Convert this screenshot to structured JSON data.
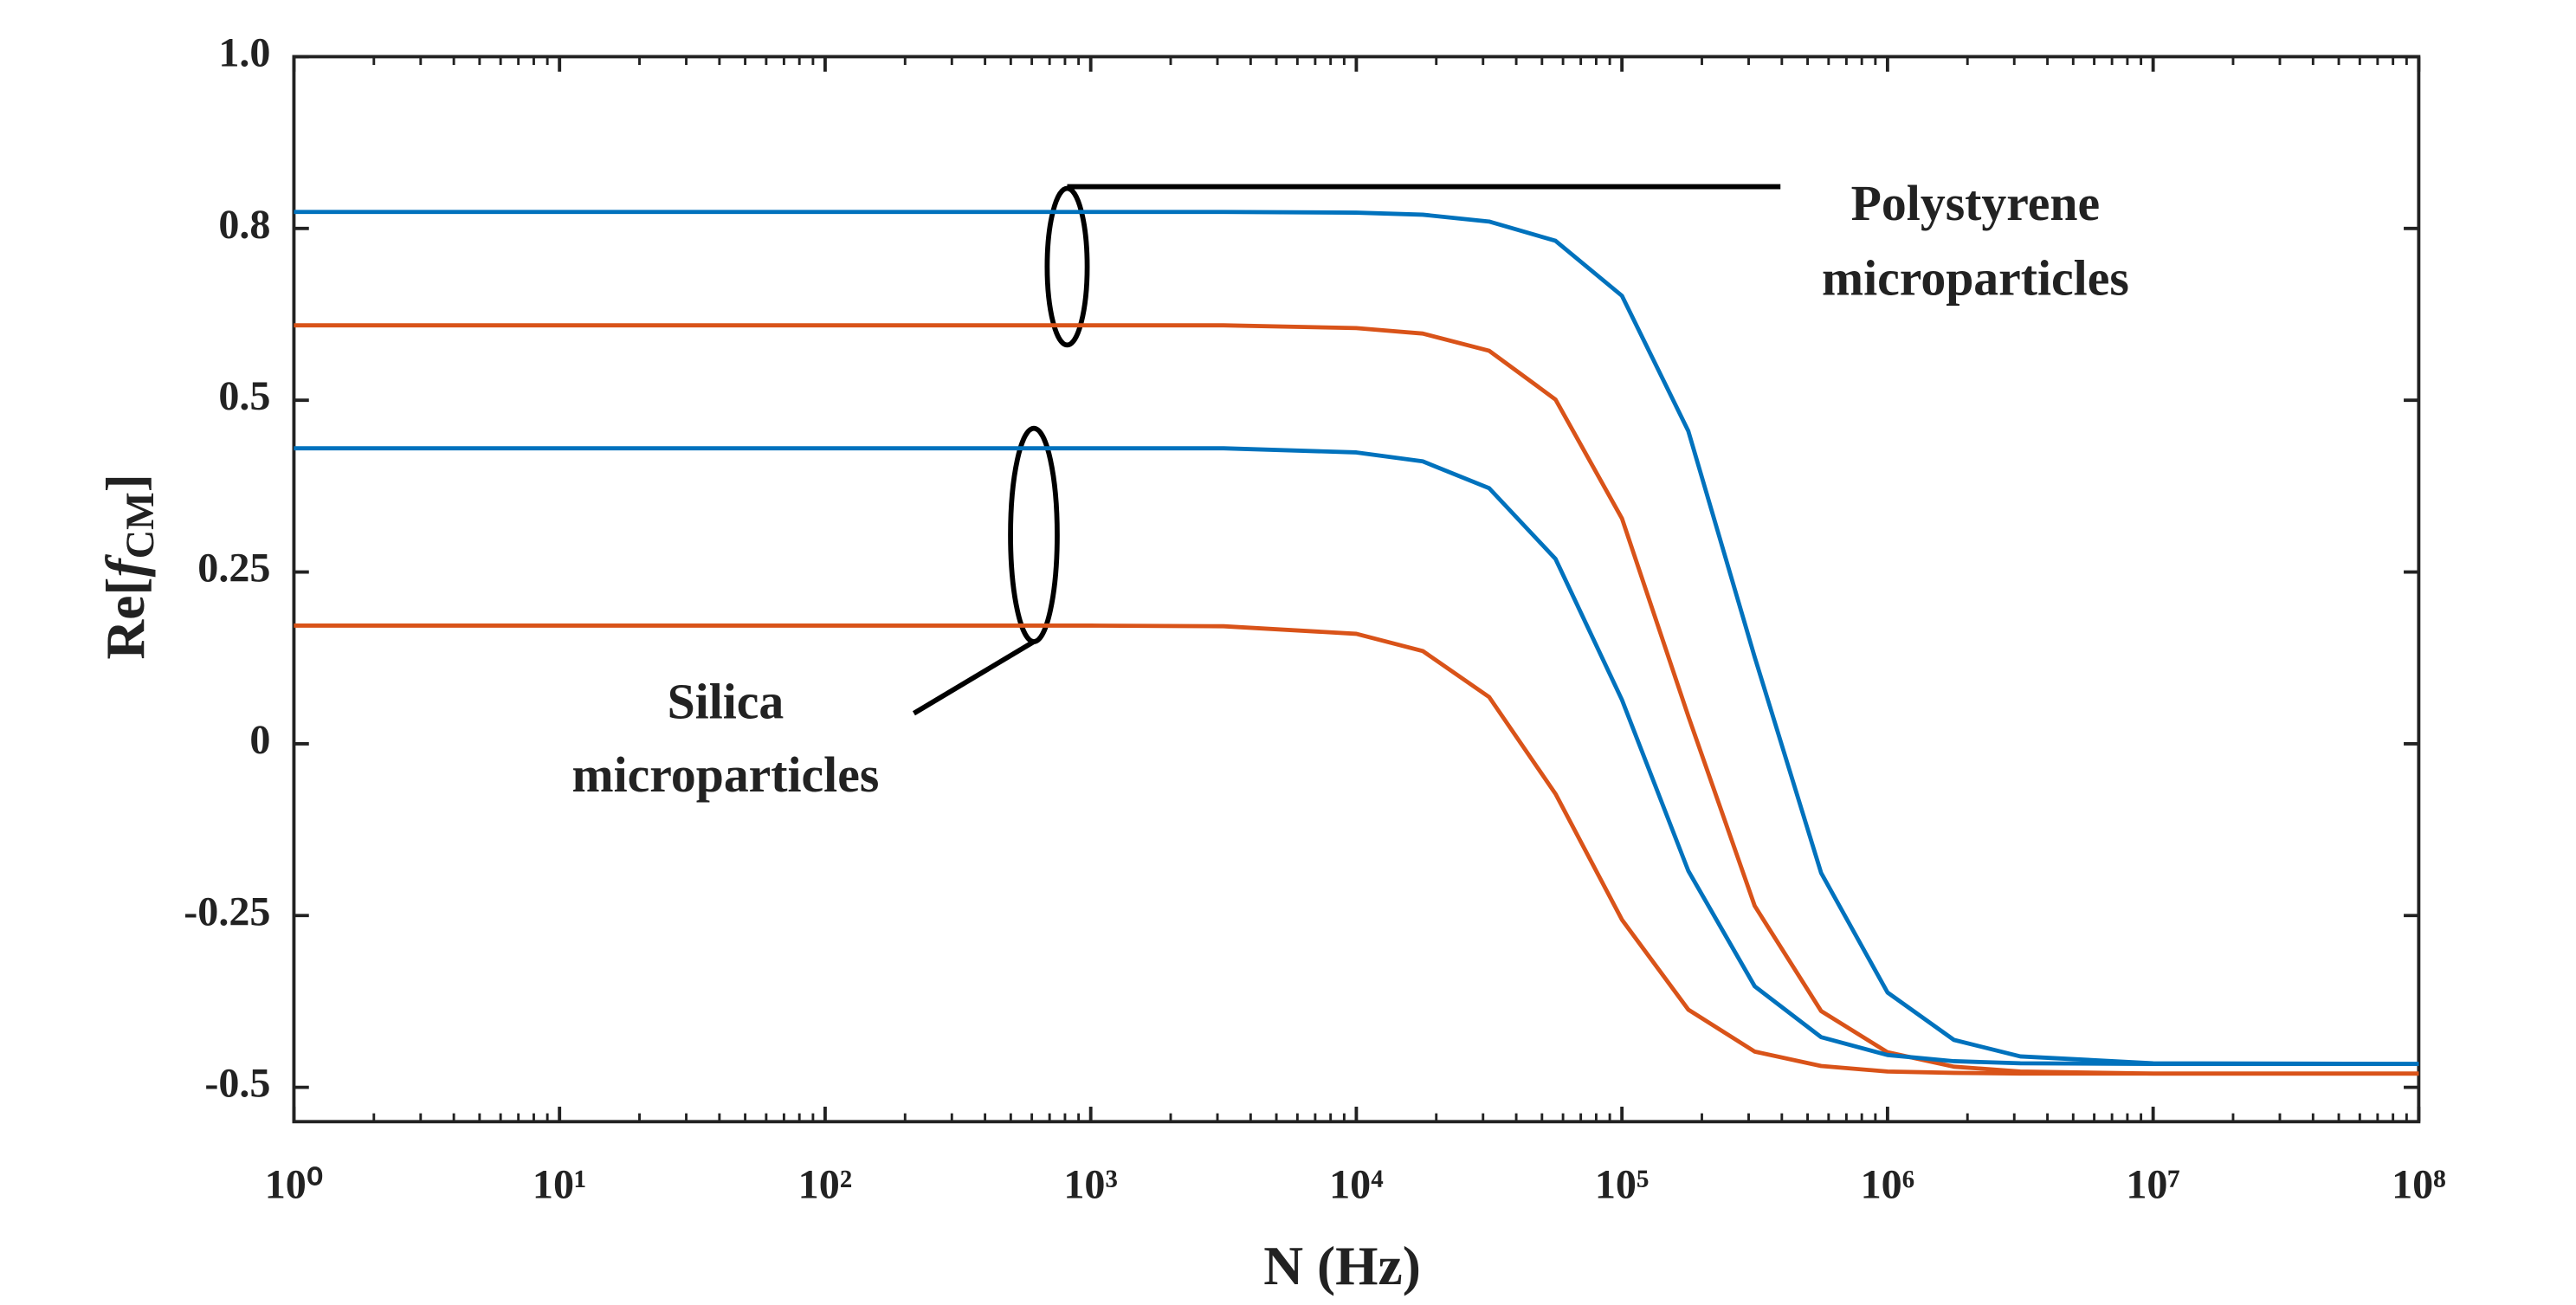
{
  "chart_data": {
    "type": "line",
    "x_label": "N (Hz)",
    "y_label": [
      "Re[",
      "f",
      "CM",
      "]"
    ],
    "annotations": [
      "Polystyrene",
      "microparticles",
      "Silica",
      "microparticles"
    ],
    "x": [
      1,
      10,
      100,
      1000,
      3162,
      10000,
      17783,
      31623,
      56234,
      100000,
      177828,
      316228,
      562341,
      1000000,
      1778279,
      3162278,
      10000000,
      100000000
    ],
    "series": [
      {
        "color": "#0072bd",
        "values": [
          0.774,
          0.774,
          0.774,
          0.774,
          0.774,
          0.773,
          0.77,
          0.76,
          0.732,
          0.652,
          0.455,
          0.126,
          -0.188,
          -0.362,
          -0.431,
          -0.455,
          -0.465,
          -0.466
        ]
      },
      {
        "color": "#d95319",
        "values": [
          0.609,
          0.609,
          0.609,
          0.609,
          0.609,
          0.605,
          0.597,
          0.572,
          0.501,
          0.328,
          0.04,
          -0.236,
          -0.389,
          -0.449,
          -0.47,
          -0.477,
          -0.48,
          -0.48
        ]
      },
      {
        "color": "#0072bd",
        "values": [
          0.43,
          0.43,
          0.43,
          0.43,
          0.43,
          0.424,
          0.411,
          0.372,
          0.269,
          0.064,
          -0.185,
          -0.353,
          -0.427,
          -0.453,
          -0.462,
          -0.465,
          -0.466,
          -0.466
        ]
      },
      {
        "color": "#d95319",
        "values": [
          0.172,
          0.172,
          0.172,
          0.172,
          0.171,
          0.16,
          0.135,
          0.068,
          -0.073,
          -0.256,
          -0.387,
          -0.448,
          -0.469,
          -0.477,
          -0.479,
          -0.48,
          -0.48,
          -0.48
        ]
      }
    ],
    "xlim": [
      1,
      100000000
    ],
    "xticks": [
      {
        "value": 1,
        "label": "10⁰"
      },
      {
        "value": 10,
        "label": "10¹"
      },
      {
        "value": 100,
        "label": "10²"
      },
      {
        "value": 1000,
        "label": "10³"
      },
      {
        "value": 10000,
        "label": "10⁴"
      },
      {
        "value": 100000,
        "label": "10⁵"
      },
      {
        "value": 1000000,
        "label": "10⁶"
      },
      {
        "value": 10000000,
        "label": "10⁷"
      },
      {
        "value": 100000000,
        "label": "10⁸"
      }
    ],
    "x_log": true,
    "ylim": [
      -0.55,
      1.0
    ],
    "yticks": [
      {
        "value": -0.5,
        "label": "-0.5"
      },
      -0.25,
      0,
      0.25,
      0.5,
      {
        "value": 0.75,
        "label": "0.8"
      },
      {
        "value": 1.0,
        "label": "1.0"
      }
    ],
    "grid": false
  }
}
